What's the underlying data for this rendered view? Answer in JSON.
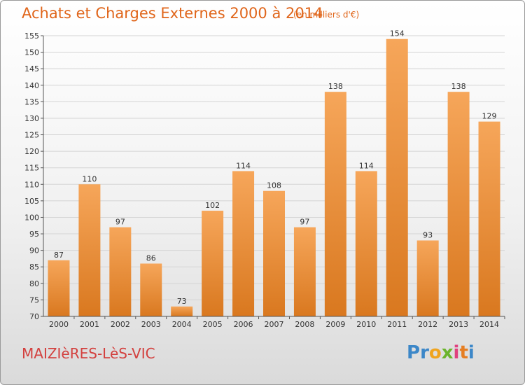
{
  "header": {
    "title": "Achats et Charges Externes 2000 à 2014",
    "subtitle": "(en milliers d'€)"
  },
  "footer": {
    "commune": "MAIZIèRES-LèS-VIC",
    "logo_text": "Proxiti",
    "logo_letters": [
      {
        "ch": "P",
        "color": "#3c87c8"
      },
      {
        "ch": "r",
        "color": "#3c87c8"
      },
      {
        "ch": "o",
        "color": "#f0a41e"
      },
      {
        "ch": "x",
        "color": "#6bb42c"
      },
      {
        "ch": "i",
        "color": "#e0407e"
      },
      {
        "ch": "t",
        "color": "#e67e22"
      },
      {
        "ch": "i",
        "color": "#3c87c8"
      }
    ]
  },
  "colors": {
    "bar_top": "#f6a65a",
    "bar_bottom": "#d9781f",
    "grid": "#d4d4d4",
    "axis": "#555555"
  },
  "chart_data": {
    "type": "bar",
    "title": "Achats et Charges Externes 2000 à 2014",
    "subtitle": "(en milliers d'€)",
    "categories": [
      "2000",
      "2001",
      "2002",
      "2003",
      "2004",
      "2005",
      "2006",
      "2007",
      "2008",
      "2009",
      "2010",
      "2011",
      "2012",
      "2013",
      "2014"
    ],
    "values": [
      87,
      110,
      97,
      86,
      73,
      102,
      114,
      108,
      97,
      138,
      114,
      154,
      93,
      138,
      129
    ],
    "ylim": [
      70,
      155
    ],
    "yticks": [
      70,
      75,
      80,
      85,
      90,
      95,
      100,
      105,
      110,
      115,
      120,
      125,
      130,
      135,
      140,
      145,
      150,
      155
    ],
    "grid": true,
    "legend": "none"
  }
}
